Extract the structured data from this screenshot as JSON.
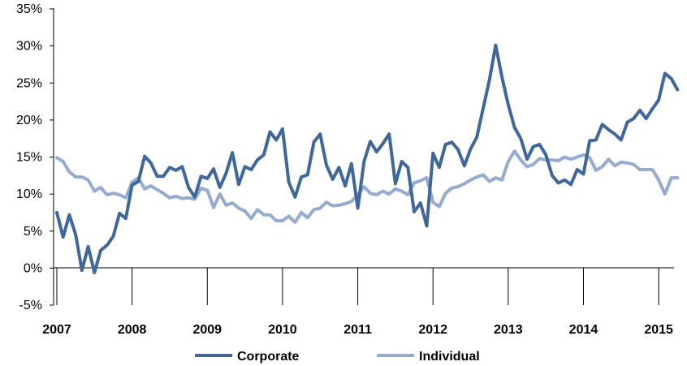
{
  "chart_data": {
    "type": "line",
    "title": "",
    "xlabel": "",
    "ylabel": "",
    "x_start": "2007-01",
    "x_end": "2015-04",
    "x_step": "month",
    "xticks": [
      "2007",
      "2008",
      "2009",
      "2010",
      "2011",
      "2012",
      "2013",
      "2014",
      "2015"
    ],
    "yticks": [
      "35%",
      "30%",
      "25%",
      "20%",
      "15%",
      "10%",
      "5%",
      "0%",
      "-5%"
    ],
    "ylim": [
      -5,
      35
    ],
    "grid": false,
    "legend_position": "bottom",
    "series": [
      {
        "name": "Corporate",
        "color": "#3F6799",
        "values": [
          7.5,
          4.2,
          7.2,
          4.5,
          -0.3,
          2.9,
          -0.6,
          2.4,
          3.1,
          4.3,
          7.4,
          6.7,
          11.2,
          11.7,
          15.1,
          14.2,
          12.4,
          12.4,
          13.6,
          13.2,
          13.7,
          10.9,
          9.6,
          12.4,
          12.1,
          13.4,
          10.9,
          12.8,
          15.6,
          11.3,
          13.7,
          13.3,
          14.6,
          15.3,
          18.4,
          17.3,
          18.8,
          11.6,
          9.6,
          12.3,
          12.6,
          17.0,
          18.1,
          13.9,
          12.0,
          13.6,
          11.1,
          14.1,
          8.1,
          14.4,
          17.1,
          15.7,
          16.8,
          18.1,
          11.4,
          14.4,
          13.6,
          7.6,
          8.8,
          5.7,
          15.5,
          13.6,
          16.7,
          17.0,
          16.0,
          13.8,
          16.1,
          17.7,
          21.6,
          25.4,
          30.1,
          25.8,
          22.1,
          19.0,
          17.5,
          14.7,
          16.4,
          16.7,
          15.3,
          12.5,
          11.5,
          11.9,
          11.3,
          13.3,
          12.7,
          17.2,
          17.3,
          19.4,
          18.7,
          18.1,
          17.3,
          19.7,
          20.2,
          21.3,
          20.2,
          21.5,
          22.7,
          26.3,
          25.6,
          24.1
        ]
      },
      {
        "name": "Individual",
        "color": "#95ABCF",
        "values": [
          14.9,
          14.4,
          13.0,
          12.3,
          12.3,
          11.9,
          10.4,
          10.9,
          9.9,
          10.1,
          9.9,
          9.5,
          11.6,
          12.2,
          10.7,
          11.1,
          10.6,
          10.1,
          9.5,
          9.7,
          9.4,
          9.5,
          9.3,
          10.8,
          10.5,
          8.2,
          10.0,
          8.5,
          8.8,
          8.1,
          7.7,
          6.7,
          7.9,
          7.2,
          7.2,
          6.4,
          6.4,
          7.0,
          6.2,
          7.5,
          6.8,
          7.9,
          8.1,
          8.9,
          8.4,
          8.5,
          8.7,
          9.0,
          9.9,
          11.0,
          10.1,
          9.9,
          10.4,
          10.0,
          10.7,
          10.4,
          9.9,
          11.5,
          11.8,
          12.2,
          8.9,
          8.3,
          10.1,
          10.8,
          11.0,
          11.4,
          11.9,
          12.3,
          12.6,
          11.7,
          12.2,
          11.9,
          14.4,
          15.8,
          14.6,
          13.7,
          14.0,
          14.8,
          14.6,
          14.6,
          14.5,
          15.0,
          14.7,
          15.0,
          15.3,
          14.9,
          13.2,
          13.7,
          14.7,
          13.8,
          14.3,
          14.2,
          14.0,
          13.3,
          13.3,
          13.3,
          11.9,
          10.0,
          12.2,
          12.2
        ]
      }
    ]
  }
}
